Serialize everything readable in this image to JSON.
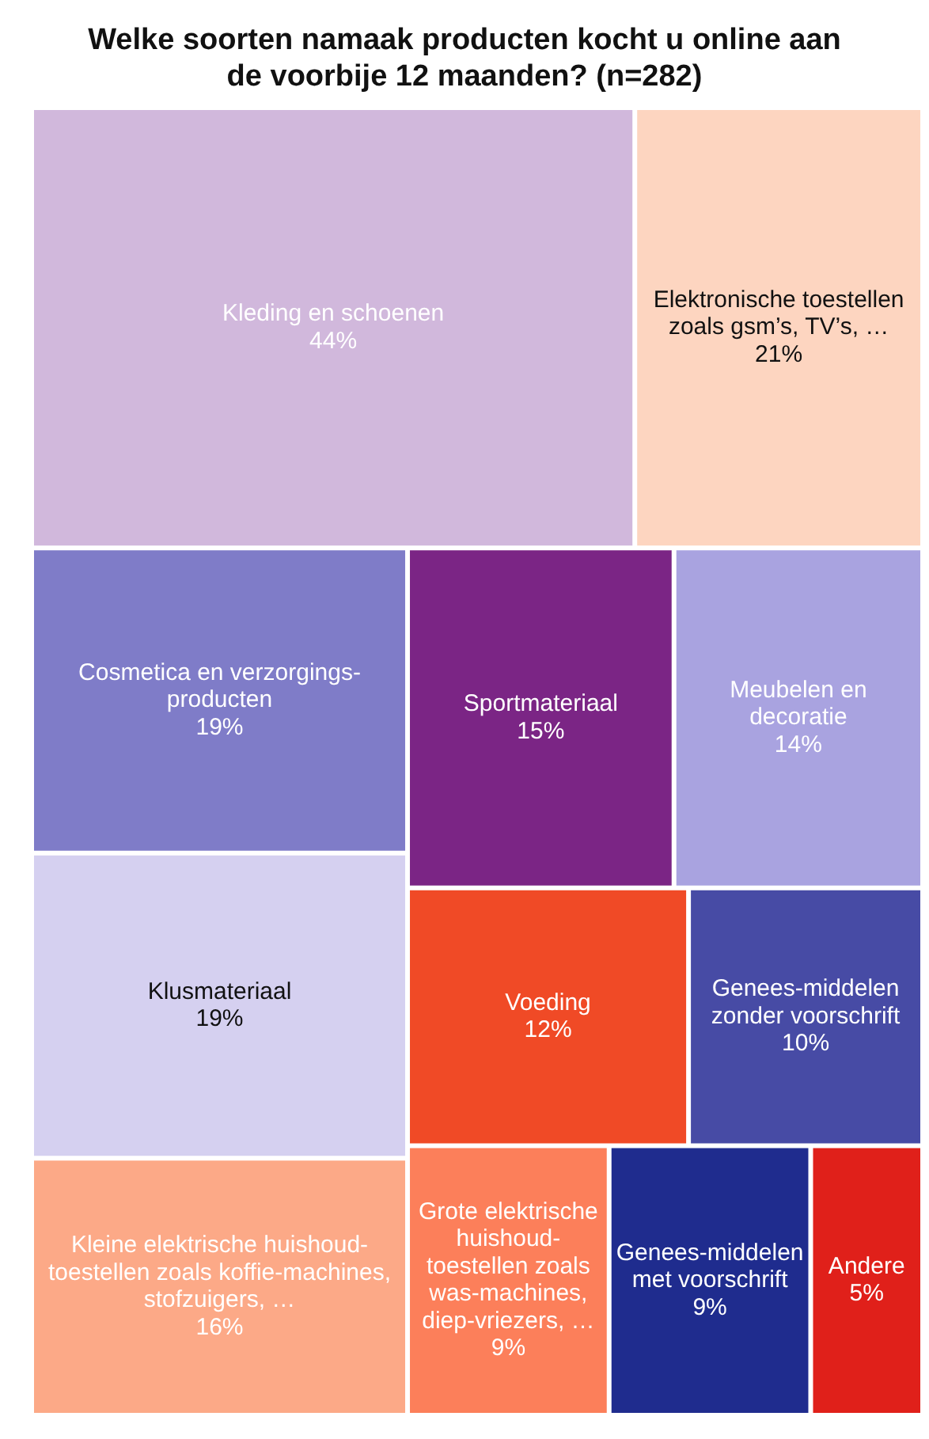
{
  "chart_data": {
    "type": "other",
    "title": "Welke soorten namaak producten kocht u online aan de voorbije 12 maanden? (n=282)",
    "categories": [
      "Kleding en schoenen",
      "Elektronische toestellen zoals gsm’s, TV’s, …",
      "Cosmetica en verzorgings-producten",
      "Klusmateriaal",
      "Kleine elektrische huishoud-toestellen zoals koffie-machines, stofzuigers, …",
      "Sportmateriaal",
      "Meubelen en decoratie",
      "Voeding",
      "Genees-middelen zonder voorschrift",
      "Grote elektrische huishoud-toestellen zoals was-machines, diep-vriezers, …",
      "Genees-middelen met voorschrift",
      "Andere"
    ],
    "values": [
      44,
      21,
      19,
      19,
      16,
      15,
      14,
      12,
      10,
      9,
      9,
      5
    ],
    "value_labels": [
      "44%",
      "21%",
      "19%",
      "19%",
      "16%",
      "15%",
      "14%",
      "12%",
      "10%",
      "9%",
      "9%",
      "5%"
    ],
    "colors": [
      "#d1b8dc",
      "#fdd5c0",
      "#7f7cc8",
      "#d5d0f0",
      "#fca987",
      "#7b2585",
      "#a9a3e0",
      "#f04a26",
      "#474ba5",
      "#fc7f5a",
      "#1f2c8e",
      "#e0201a"
    ]
  }
}
